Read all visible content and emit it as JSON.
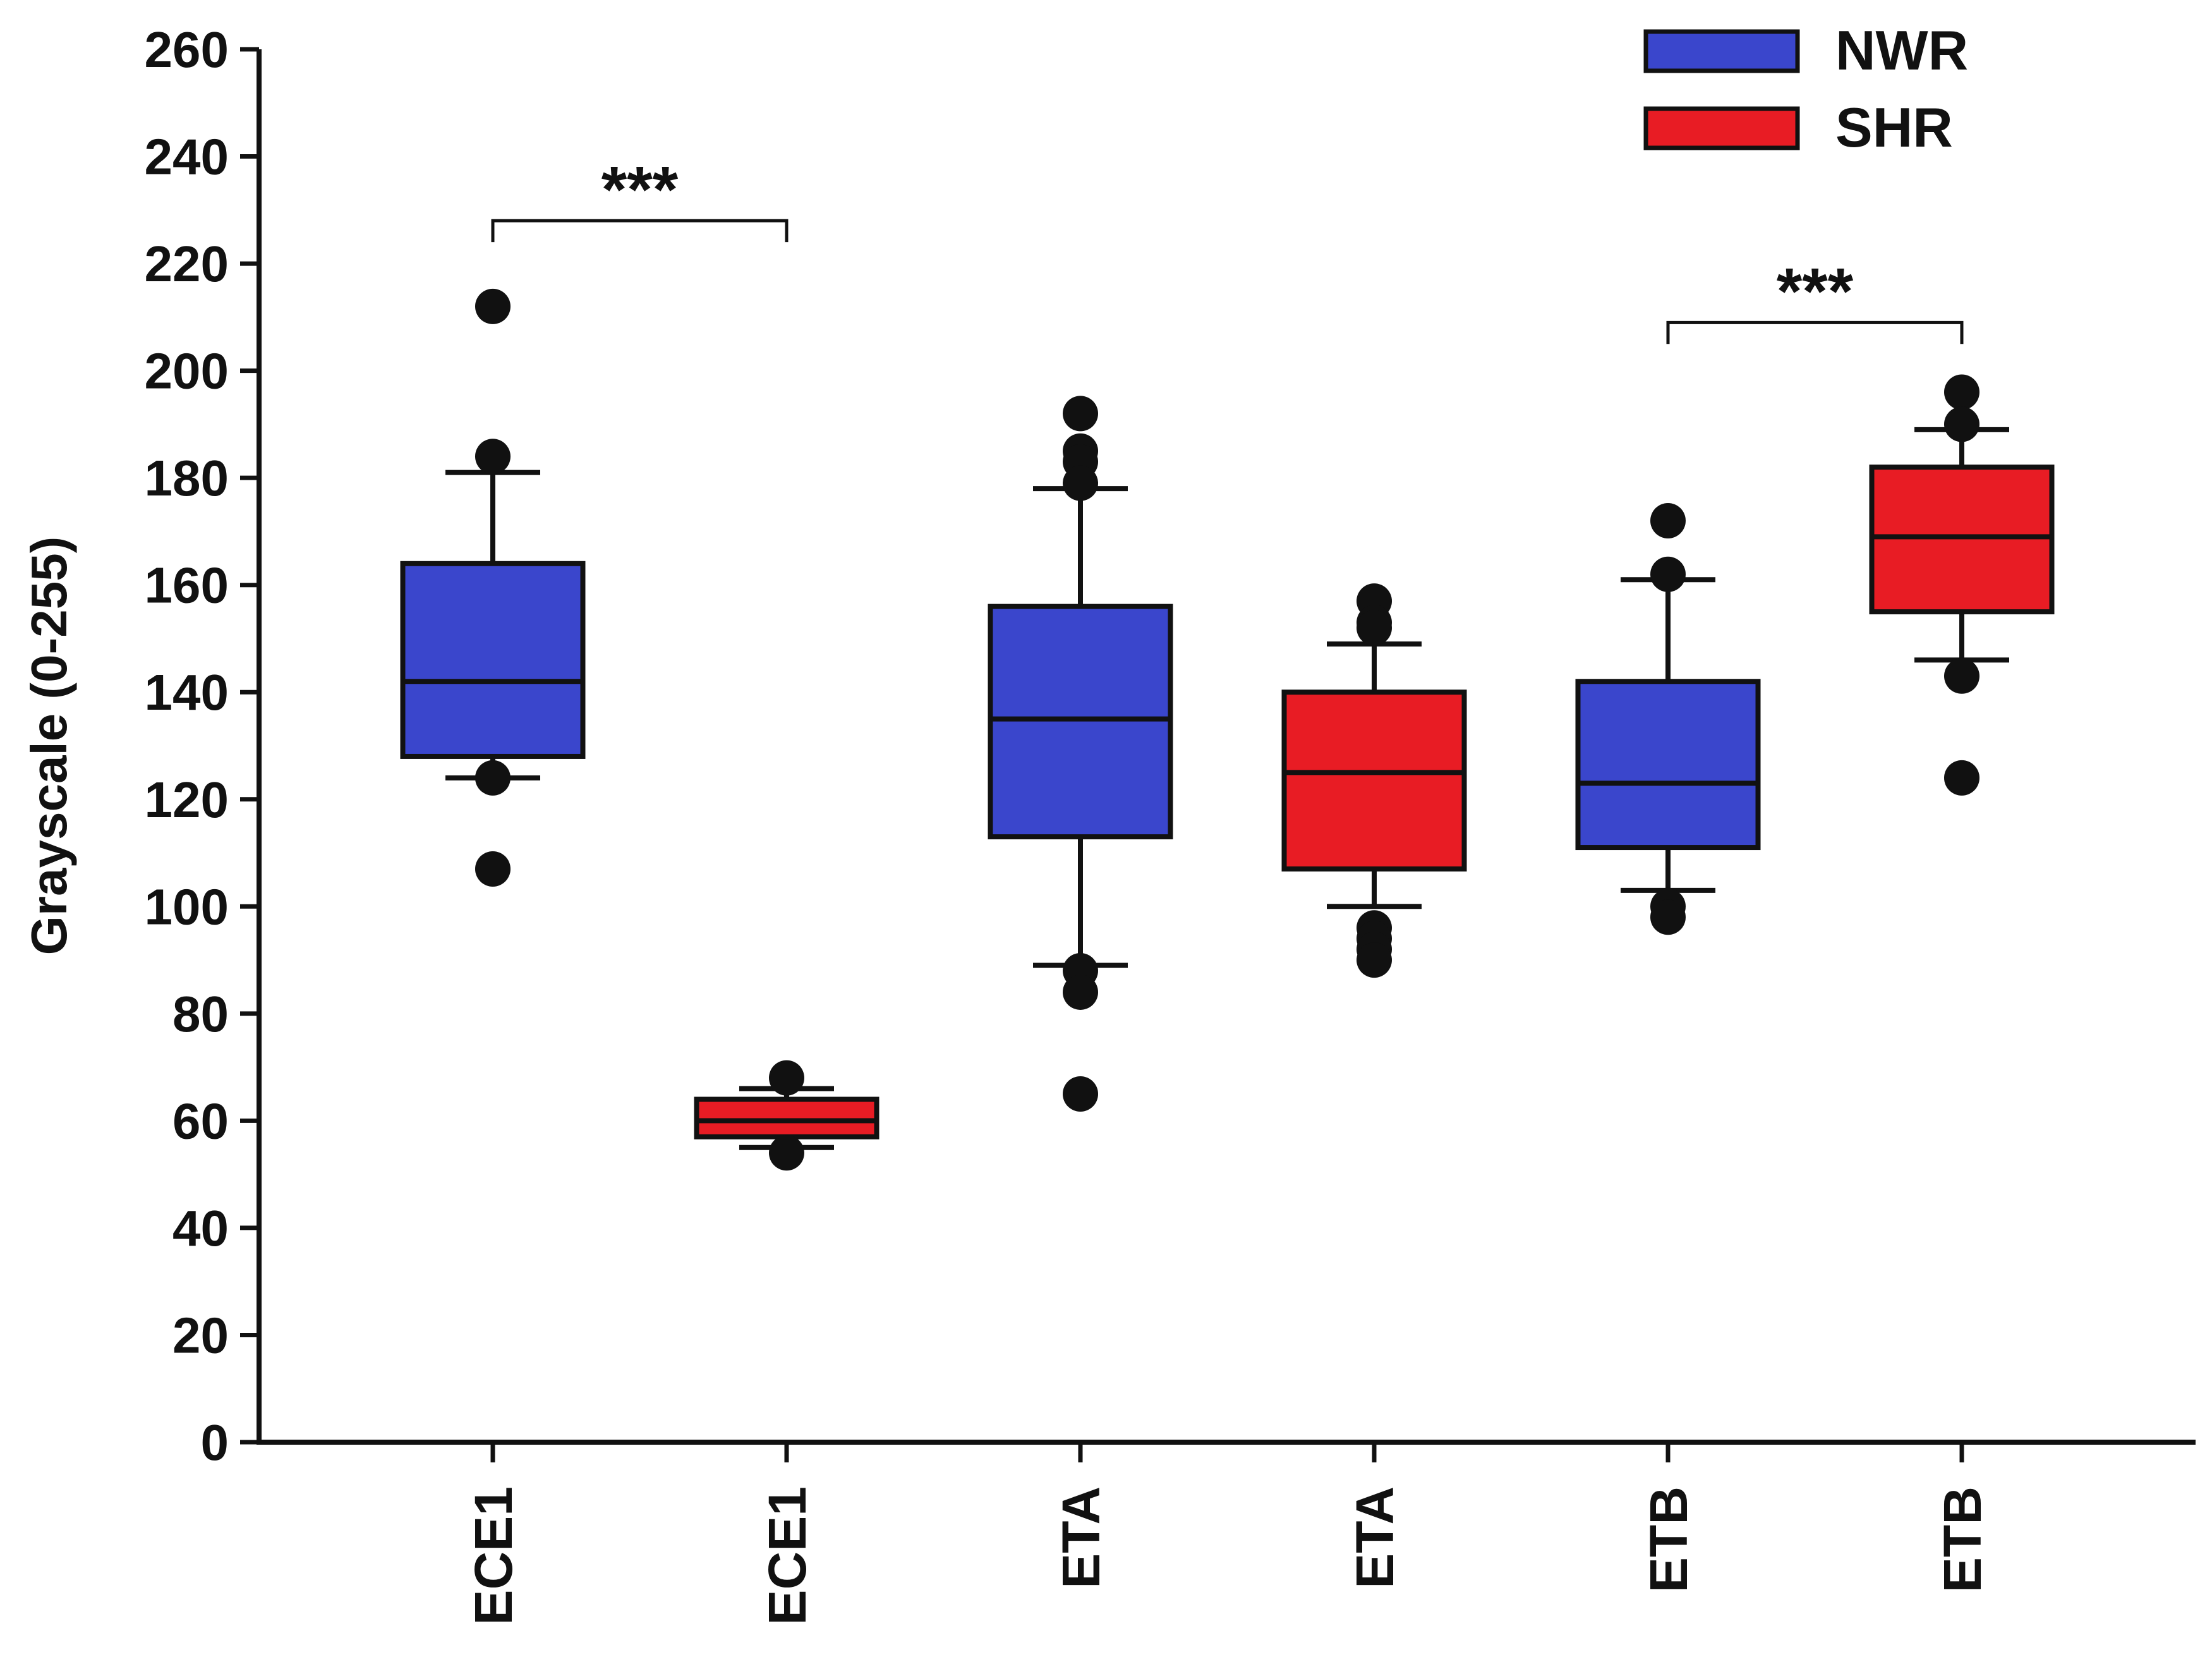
{
  "chart_data": {
    "type": "box",
    "title": "",
    "xlabel": "",
    "ylabel": "Grayscale (0-255)",
    "ylim": [
      0,
      260
    ],
    "yticks": [
      0,
      20,
      40,
      60,
      80,
      100,
      120,
      140,
      160,
      180,
      200,
      220,
      240,
      260
    ],
    "ytick_labels": [
      "0",
      "20",
      "40",
      "60",
      "80",
      "100",
      "120",
      "140",
      "160",
      "180",
      "200",
      "220",
      "240",
      "260"
    ],
    "grid": false,
    "legend_position": "top-right",
    "legend": [
      {
        "name": "NWR",
        "color": "#3a46cc"
      },
      {
        "name": "SHR",
        "color": "#e81c24"
      }
    ],
    "categories": [
      "ECE1",
      "ECE1",
      "ETA",
      "ETA",
      "ETB",
      "ETB"
    ],
    "boxes": [
      {
        "category": "ECE1",
        "group": "NWR",
        "whisker_low": 124,
        "q1": 128,
        "median": 142,
        "q3": 164,
        "whisker_high": 181,
        "outliers": [
          212,
          184,
          124,
          107
        ]
      },
      {
        "category": "ECE1",
        "group": "SHR",
        "whisker_low": 55,
        "q1": 57,
        "median": 60,
        "q3": 64,
        "whisker_high": 66,
        "outliers": [
          68,
          54
        ]
      },
      {
        "category": "ETA",
        "group": "NWR",
        "whisker_low": 89,
        "q1": 113,
        "median": 135,
        "q3": 156,
        "whisker_high": 178,
        "outliers": [
          192,
          185,
          183,
          179,
          88,
          84,
          65
        ]
      },
      {
        "category": "ETA",
        "group": "SHR",
        "whisker_low": 100,
        "q1": 107,
        "median": 125,
        "q3": 140,
        "whisker_high": 149,
        "outliers": [
          157,
          153,
          152,
          96,
          94,
          92,
          90
        ]
      },
      {
        "category": "ETB",
        "group": "NWR",
        "whisker_low": 103,
        "q1": 111,
        "median": 123,
        "q3": 142,
        "whisker_high": 161,
        "outliers": [
          172,
          162,
          100,
          98
        ]
      },
      {
        "category": "ETB",
        "group": "SHR",
        "whisker_low": 146,
        "q1": 155,
        "median": 169,
        "q3": 182,
        "whisker_high": 189,
        "outliers": [
          196,
          190,
          143,
          124
        ]
      }
    ],
    "annotations": [
      {
        "text": "***",
        "from_box": 0,
        "to_box": 1,
        "bracket_y": 228,
        "left_end": 224,
        "right_end": 224
      },
      {
        "text": "***",
        "from_box": 4,
        "to_box": 5,
        "bracket_y": 209,
        "left_end": 205,
        "right_end": 205
      }
    ]
  }
}
